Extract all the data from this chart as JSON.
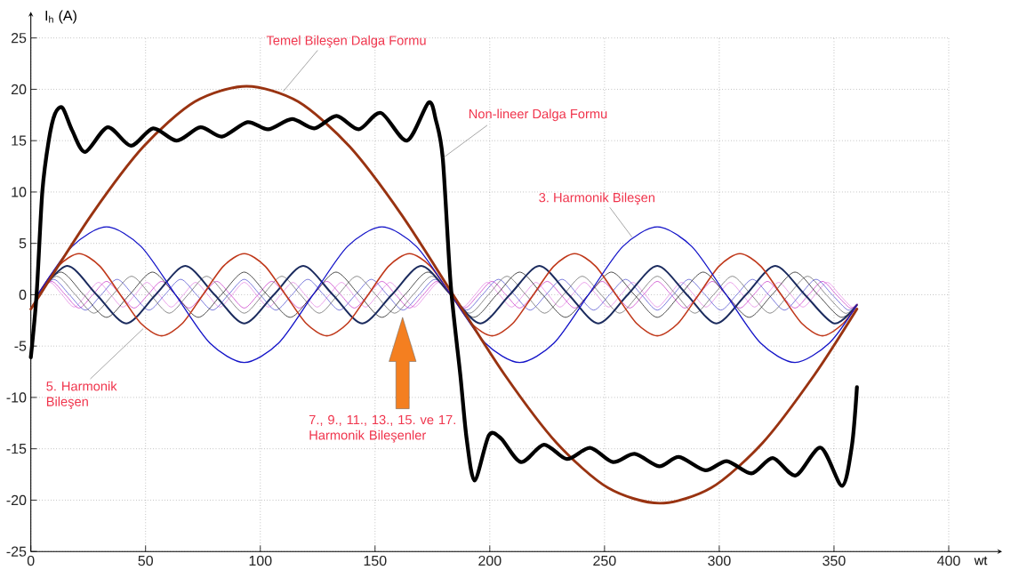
{
  "chart_data": {
    "type": "line",
    "xlabel": "wt",
    "ylabel": "I$_{h}$ (A)",
    "xlim": [
      0,
      400
    ],
    "ylim": [
      -25,
      25
    ],
    "xticks": [
      0,
      50,
      100,
      150,
      200,
      250,
      300,
      350,
      400
    ],
    "yticks": [
      -25,
      -20,
      -15,
      -10,
      -5,
      0,
      5,
      10,
      15,
      20,
      25
    ],
    "grid": true,
    "series": [
      {
        "color": "#e48ae4",
        "x": [
          3.0,
          8.3,
          13.6,
          18.9,
          24.2,
          29.5,
          34.8,
          40.1,
          45.4,
          50.6,
          55.9,
          61.2,
          66.5,
          71.8,
          77.1,
          82.4,
          87.7,
          93.0,
          98.3,
          103.6,
          108.9,
          114.2,
          119.5,
          124.8,
          130.1,
          135.4,
          140.6,
          145.9,
          151.2,
          156.5,
          161.8,
          167.1,
          172.4,
          177.7,
          183.0,
          188.3,
          193.6,
          198.9,
          204.2,
          209.5,
          214.8,
          220.1,
          225.4,
          230.6,
          235.9,
          241.2,
          246.5,
          251.8,
          257.1,
          262.4,
          267.7,
          273.0,
          278.3,
          283.6,
          288.9,
          294.2,
          299.5,
          304.8,
          310.1,
          315.4,
          320.6,
          325.9,
          331.2,
          336.5,
          341.8,
          347.1,
          352.4,
          357.7,
          360
        ],
        "values": [
          0,
          1.2,
          0,
          -1.2,
          0,
          1.2,
          0,
          -1.2,
          0,
          1.2,
          0,
          -1.2,
          0,
          1.2,
          0,
          -1.2,
          0,
          1.2,
          0,
          -1.2,
          0,
          1.2,
          0,
          -1.2,
          0,
          1.2,
          0,
          -1.2,
          0,
          1.2,
          0,
          -1.2,
          0,
          1.2,
          0,
          -1.2,
          0,
          1.2,
          0,
          -1.2,
          0,
          1.2,
          0,
          -1.2,
          0,
          1.2,
          0,
          -1.2,
          0,
          1.2,
          0,
          -1.2,
          0,
          1.2,
          0,
          -1.2,
          0,
          1.2,
          0,
          -1.2,
          0,
          1.2,
          0,
          -1.2,
          0,
          1.2,
          0,
          -1.2,
          -0.9
        ]
      },
      {
        "color": "#cc44cc",
        "x": [
          3,
          9,
          15,
          21,
          27,
          33,
          39,
          45,
          51,
          57,
          63,
          69,
          75,
          81,
          87,
          93,
          99,
          105,
          111,
          117,
          123,
          129,
          135,
          141,
          147,
          153,
          159,
          165,
          171,
          177,
          183,
          189,
          195,
          201,
          207,
          213,
          219,
          225,
          231,
          237,
          243,
          249,
          255,
          261,
          267,
          273,
          279,
          285,
          291,
          297,
          303,
          309,
          315,
          321,
          327,
          333,
          339,
          345,
          351,
          357,
          360
        ],
        "values": [
          0,
          1.3,
          0,
          -1.3,
          0,
          1.3,
          0,
          -1.3,
          0,
          1.3,
          0,
          -1.3,
          0,
          1.3,
          0,
          -1.3,
          0,
          1.3,
          0,
          -1.3,
          0,
          1.3,
          0,
          -1.3,
          0,
          1.3,
          0,
          -1.3,
          0,
          1.3,
          0,
          -1.3,
          0,
          1.3,
          0,
          -1.3,
          0,
          1.3,
          0,
          -1.3,
          0,
          1.3,
          0,
          -1.3,
          0,
          1.3,
          0,
          -1.3,
          0,
          1.3,
          0,
          -1.3,
          0,
          1.3,
          0,
          -1.3,
          0,
          1.3,
          0,
          -1.3,
          -0.9
        ]
      },
      {
        "color": "#5a5ad2",
        "x": [
          3,
          9.9,
          16.8,
          23.8,
          30.7,
          37.6,
          44.5,
          51.5,
          58.4,
          65.3,
          72.2,
          79.2,
          86.1,
          93.0,
          99.9,
          106.8,
          113.8,
          120.7,
          127.6,
          134.5,
          141.5,
          148.4,
          155.3,
          162.2,
          169.2,
          176.1,
          183.0,
          189.9,
          196.8,
          203.8,
          210.7,
          217.6,
          224.5,
          231.5,
          238.4,
          245.3,
          252.2,
          259.2,
          266.1,
          273.0,
          279.9,
          286.8,
          293.8,
          300.7,
          307.6,
          314.5,
          321.5,
          328.4,
          335.3,
          342.2,
          349.2,
          356.1,
          360
        ],
        "values": [
          0,
          1.5,
          0,
          -1.5,
          0,
          1.5,
          0,
          -1.5,
          0,
          1.5,
          0,
          -1.5,
          0,
          1.5,
          0,
          -1.5,
          0,
          1.5,
          0,
          -1.5,
          0,
          1.5,
          0,
          -1.5,
          0,
          1.5,
          0,
          -1.5,
          0,
          1.5,
          0,
          -1.5,
          0,
          1.5,
          0,
          -1.5,
          0,
          1.5,
          0,
          -1.5,
          0,
          1.5,
          0,
          -1.5,
          0,
          1.5,
          0,
          -1.5,
          0,
          1.5,
          0,
          -1.5,
          -0.9
        ]
      },
      {
        "color": "#6e6e6e",
        "x": [
          3,
          11.2,
          19.4,
          27.5,
          35.7,
          43.9,
          52.1,
          60.3,
          68.5,
          76.6,
          84.8,
          93.0,
          101.2,
          109.4,
          117.5,
          125.7,
          133.9,
          142.1,
          150.3,
          158.5,
          166.6,
          174.8,
          183.0,
          191.2,
          199.4,
          207.5,
          215.7,
          223.9,
          232.1,
          240.3,
          248.5,
          256.6,
          264.8,
          273.0,
          281.2,
          289.4,
          297.5,
          305.7,
          313.9,
          322.1,
          330.3,
          338.5,
          346.6,
          354.8,
          360
        ],
        "values": [
          0,
          1.8,
          0,
          -1.8,
          0,
          1.8,
          0,
          -1.8,
          0,
          1.8,
          0,
          -1.8,
          0,
          1.8,
          0,
          -1.8,
          0,
          1.8,
          0,
          -1.8,
          0,
          1.8,
          0,
          -1.8,
          0,
          1.8,
          0,
          -1.8,
          0,
          1.8,
          0,
          -1.8,
          0,
          1.8,
          0,
          -1.8,
          0,
          1.8,
          0,
          -1.8,
          0,
          1.8,
          0,
          -1.8,
          -1.0
        ]
      },
      {
        "color": "#1e1e1e",
        "x": [
          3,
          13,
          23,
          33,
          43,
          53,
          63,
          73,
          83,
          93,
          103,
          113,
          123,
          133,
          143,
          153,
          163,
          173,
          183,
          193,
          203,
          213,
          223,
          233,
          243,
          253,
          263,
          273,
          283,
          293,
          303,
          313,
          323,
          333,
          343,
          353,
          360
        ],
        "values": [
          0,
          2.2,
          0,
          -2.2,
          0,
          2.2,
          0,
          -2.2,
          0,
          2.2,
          0,
          -2.2,
          0,
          2.2,
          0,
          -2.2,
          0,
          2.2,
          0,
          -2.2,
          0,
          2.2,
          0,
          -2.2,
          0,
          2.2,
          0,
          -2.2,
          0,
          2.2,
          0,
          -2.2,
          0,
          2.2,
          0,
          -2.2,
          -1.0
        ]
      },
      {
        "color": "#1b2b5e",
        "x": [
          3,
          15.9,
          28.7,
          41.6,
          54.4,
          67.3,
          80.1,
          93.0,
          105.9,
          118.7,
          131.6,
          144.4,
          157.3,
          170.1,
          183.0,
          195.9,
          208.7,
          221.6,
          234.4,
          247.3,
          260.1,
          273.0,
          285.9,
          298.7,
          311.6,
          324.4,
          337.3,
          350.1,
          360
        ],
        "values": [
          0,
          2.8,
          0,
          -2.8,
          0,
          2.8,
          0,
          -2.8,
          0,
          2.8,
          0,
          -2.8,
          0,
          2.8,
          0,
          -2.8,
          0,
          2.8,
          0,
          -2.8,
          0,
          2.8,
          0,
          -2.8,
          0,
          2.8,
          0,
          -2.8,
          -1.0
        ]
      },
      {
        "color": "#c0391b",
        "x": [
          3,
          12,
          21,
          30,
          39,
          48,
          57,
          66,
          75,
          84,
          93,
          102,
          111,
          120,
          129,
          138,
          147,
          156,
          165,
          174,
          183,
          192,
          201,
          210,
          219,
          228,
          237,
          246,
          255,
          264,
          273,
          282,
          291,
          300,
          309,
          318,
          327,
          336,
          345,
          354,
          360
        ],
        "values": [
          0,
          2.8,
          4,
          2.8,
          0,
          -2.8,
          -4,
          -2.8,
          0,
          2.8,
          4,
          2.8,
          0,
          -2.8,
          -4,
          -2.8,
          0,
          2.8,
          4,
          2.8,
          0,
          -2.8,
          -4,
          -2.8,
          0,
          2.8,
          4,
          2.8,
          0,
          -2.8,
          -4,
          -2.8,
          0,
          2.8,
          4,
          2.8,
          0,
          -2.8,
          -4,
          -2.8,
          -1.0
        ]
      },
      {
        "color": "#1414c8",
        "x": [
          3,
          18,
          33,
          48,
          63,
          78,
          93,
          108,
          123,
          138,
          153,
          168,
          183,
          198,
          213,
          228,
          243,
          258,
          273,
          288,
          303,
          318,
          333,
          348,
          360
        ],
        "values": [
          0,
          4.7,
          6.6,
          4.7,
          0,
          -4.7,
          -6.6,
          -4.7,
          0,
          4.7,
          6.6,
          4.7,
          0,
          -4.7,
          -6.6,
          -4.7,
          0,
          4.7,
          6.6,
          4.7,
          0,
          -4.7,
          -6.6,
          -4.7,
          -1.0
        ]
      },
      {
        "color": "#993311",
        "x": [
          0,
          4,
          26.5,
          49,
          71.5,
          94,
          116.5,
          139,
          161.5,
          184,
          206.5,
          229,
          251.5,
          274,
          296.5,
          319,
          341.5,
          360
        ],
        "values": [
          -1.4,
          0,
          7.8,
          14.4,
          18.8,
          20.3,
          18.8,
          14.4,
          7.8,
          0,
          -7.8,
          -14.4,
          -18.8,
          -20.3,
          -18.8,
          -14.4,
          -7.8,
          -1.4
        ]
      },
      {
        "color": "#000000",
        "x": [
          0,
          2.5,
          5,
          7.8,
          10.5,
          13.8,
          18,
          23.7,
          33.5,
          43.6,
          53.3,
          63.6,
          73.9,
          83.3,
          94.4,
          103.4,
          113.8,
          123.5,
          133.2,
          142.9,
          152.5,
          163.9,
          173.3,
          176.5,
          179.5,
          183,
          187.2,
          189.9,
          193.4,
          199.6,
          204.9,
          213.6,
          223.6,
          233.6,
          243.7,
          253.7,
          263.1,
          273.8,
          282.4,
          293.9,
          303.3,
          314,
          323.3,
          333.3,
          344.2,
          353.5,
          357.8,
          360
        ],
        "values": [
          -6.1,
          0,
          10,
          15,
          17.6,
          18.2,
          16,
          13.9,
          16.3,
          14.5,
          16.2,
          15.0,
          16.3,
          15.4,
          16.8,
          16.1,
          17.1,
          16.2,
          17.4,
          16.1,
          17.7,
          15.0,
          18.7,
          17,
          13.3,
          0.9,
          -7.9,
          -14.0,
          -18.1,
          -13.7,
          -14.0,
          -16.3,
          -14.6,
          -16.0,
          -14.9,
          -16.3,
          -15.5,
          -16.7,
          -15.8,
          -17.1,
          -16.2,
          -17.4,
          -15.9,
          -17.6,
          -14.9,
          -18.6,
          -14.7,
          -9.0
        ]
      }
    ],
    "annotations": [
      {
        "text": "Temel Bileşen Dalga Formu",
        "x": 110,
        "y": 19.8
      },
      {
        "text": "Non-lineer Dalga Formu",
        "x": 179.5,
        "y": 13.3
      },
      {
        "text": "3. Harmonik Bileşen",
        "x": 262,
        "y": 5.6
      },
      {
        "text": "5. Harmonik Bileşen",
        "x": 49,
        "y": -3.3
      },
      "7., 9., 11., 13., 15. ve 17. Harmonik Bileşenler"
    ]
  }
}
